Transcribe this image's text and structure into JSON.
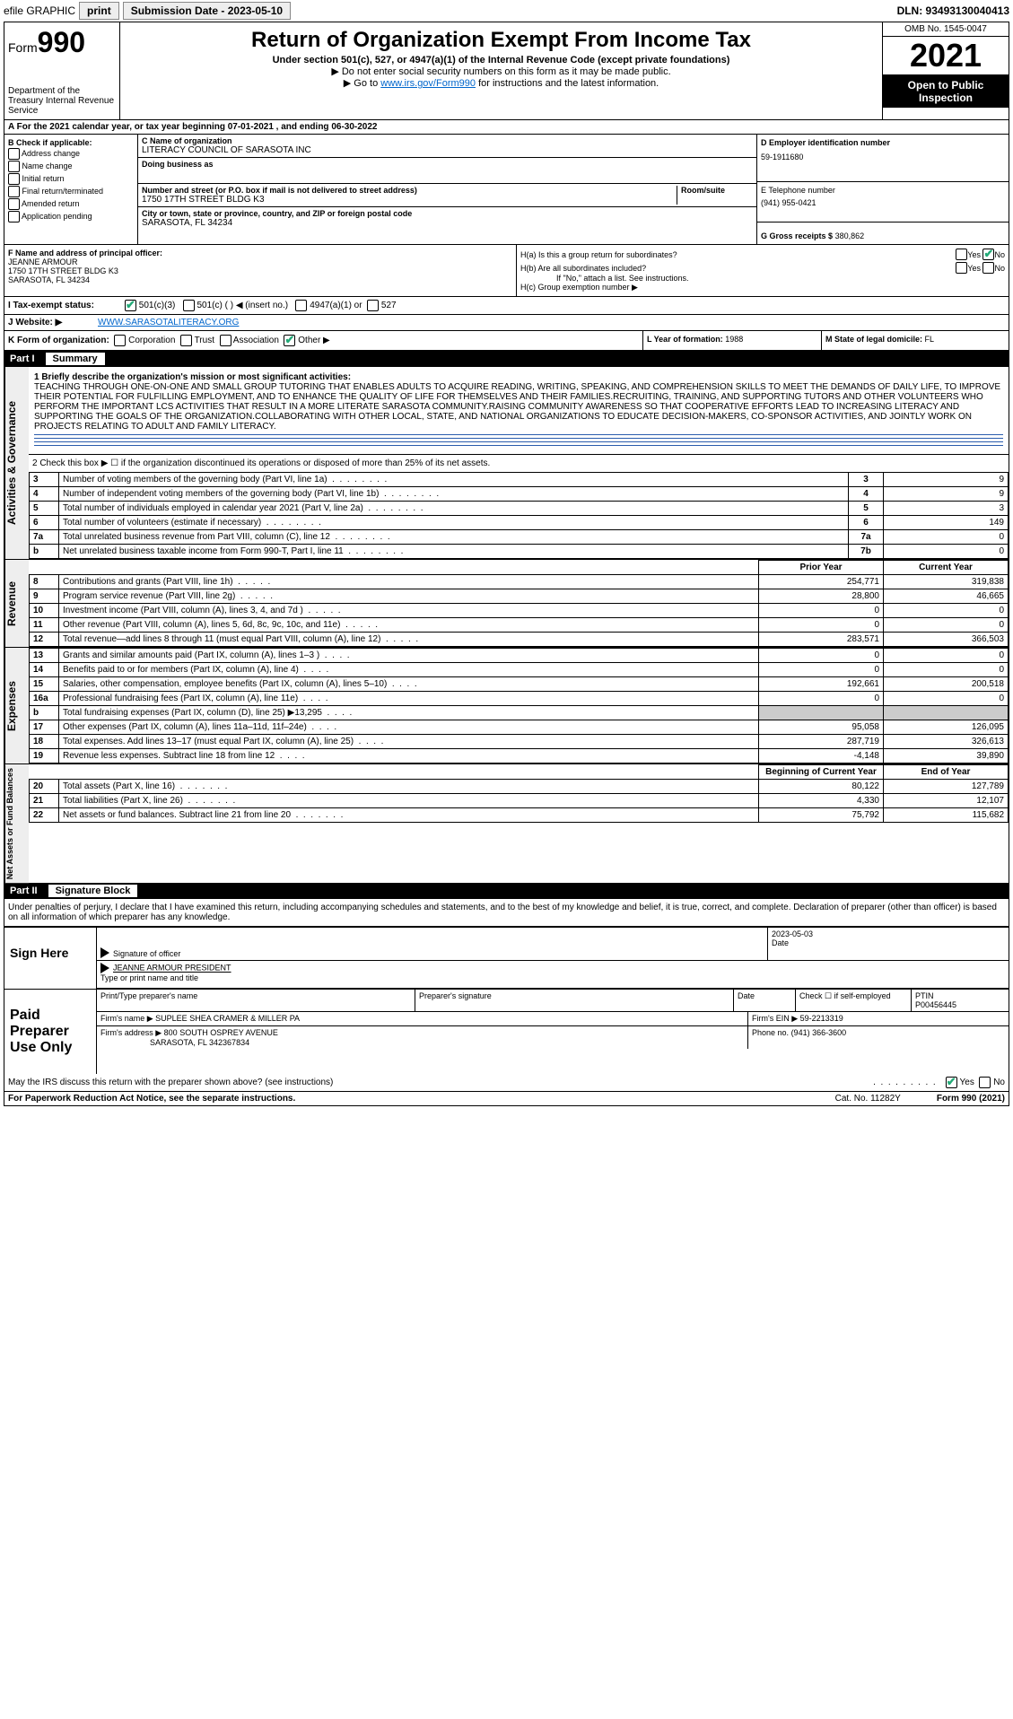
{
  "topbar": {
    "efile": "efile GRAPHIC",
    "print": "print",
    "subdate_label": "Submission Date - 2023-05-10",
    "dln": "DLN: 93493130040413"
  },
  "header": {
    "form_label": "Form",
    "form_num": "990",
    "dept": "Department of the Treasury\nInternal Revenue Service",
    "title": "Return of Organization Exempt From Income Tax",
    "sub1": "Under section 501(c), 527, or 4947(a)(1) of the Internal Revenue Code (except private foundations)",
    "sub2": "▶ Do not enter social security numbers on this form as it may be made public.",
    "sub3_pre": "▶ Go to ",
    "sub3_link": "www.irs.gov/Form990",
    "sub3_post": " for instructions and the latest information.",
    "omb": "OMB No. 1545-0047",
    "year": "2021",
    "open": "Open to Public Inspection"
  },
  "rowA": "A For the 2021 calendar year, or tax year beginning 07-01-2021   , and ending 06-30-2022",
  "sectionB": {
    "b_label": "B Check if applicable:",
    "checks": [
      "Address change",
      "Name change",
      "Initial return",
      "Final return/terminated",
      "Amended return",
      "Application pending"
    ],
    "c_label": "C Name of organization",
    "c_val": "LITERACY COUNCIL OF SARASOTA INC",
    "dba_label": "Doing business as",
    "dba_val": "",
    "addr_label": "Number and street (or P.O. box if mail is not delivered to street address)",
    "addr_val": "1750 17TH STREET BLDG K3",
    "room_label": "Room/suite",
    "city_label": "City or town, state or province, country, and ZIP or foreign postal code",
    "city_val": "SARASOTA, FL  34234",
    "d_label": "D Employer identification number",
    "d_val": "59-1911680",
    "e_label": "E Telephone number",
    "e_val": "(941) 955-0421",
    "g_label": "G Gross receipts $",
    "g_val": "380,862"
  },
  "sectionF": {
    "f_label": "F Name and address of principal officer:",
    "f_name": "JEANNE ARMOUR",
    "f_addr1": "1750 17TH STREET BLDG K3",
    "f_addr2": "SARASOTA, FL  34234",
    "ha_label": "H(a)  Is this a group return for subordinates?",
    "hb_label": "H(b)  Are all subordinates included?",
    "hb_note": "If \"No,\" attach a list. See instructions.",
    "hc_label": "H(c)  Group exemption number ▶",
    "yes": "Yes",
    "no": "No"
  },
  "rowI": {
    "label": "I   Tax-exempt status:",
    "opt1": "501(c)(3)",
    "opt2": "501(c) (  ) ◀ (insert no.)",
    "opt3": "4947(a)(1) or",
    "opt4": "527"
  },
  "rowJ": {
    "label": "J   Website: ▶",
    "val": "WWW.SARASOTALITERACY.ORG"
  },
  "sectionK": {
    "k_label": "K Form of organization:",
    "opts": [
      "Corporation",
      "Trust",
      "Association",
      "Other ▶"
    ],
    "l_label": "L Year of formation:",
    "l_val": "1988",
    "m_label": "M State of legal domicile:",
    "m_val": "FL"
  },
  "part1": {
    "header": "Part I",
    "title": "Summary",
    "line1_label": "1  Briefly describe the organization's mission or most significant activities:",
    "mission": "TEACHING THROUGH ONE-ON-ONE AND SMALL GROUP TUTORING THAT ENABLES ADULTS TO ACQUIRE READING, WRITING, SPEAKING, AND COMPREHENSION SKILLS TO MEET THE DEMANDS OF DAILY LIFE, TO IMPROVE THEIR POTENTIAL FOR FULFILLING EMPLOYMENT, AND TO ENHANCE THE QUALITY OF LIFE FOR THEMSELVES AND THEIR FAMILIES.RECRUITING, TRAINING, AND SUPPORTING TUTORS AND OTHER VOLUNTEERS WHO PERFORM THE IMPORTANT LCS ACTIVITIES THAT RESULT IN A MORE LITERATE SARASOTA COMMUNITY.RAISING COMMUNITY AWARENESS SO THAT COOPERATIVE EFFORTS LEAD TO INCREASING LITERACY AND SUPPORTING THE GOALS OF THE ORGANIZATION.COLLABORATING WITH OTHER LOCAL, STATE, AND NATIONAL ORGANIZATIONS TO EDUCATE DECISION-MAKERS, CO-SPONSOR ACTIVITIES, AND JOINTLY WORK ON PROJECTS RELATING TO ADULT AND FAMILY LITERACY.",
    "line2": "2   Check this box ▶ ☐ if the organization discontinued its operations or disposed of more than 25% of its net assets.",
    "governance_label": "Activities & Governance",
    "gov_rows": [
      {
        "n": "3",
        "desc": "Number of voting members of the governing body (Part VI, line 1a)",
        "num": "3",
        "val": "9"
      },
      {
        "n": "4",
        "desc": "Number of independent voting members of the governing body (Part VI, line 1b)",
        "num": "4",
        "val": "9"
      },
      {
        "n": "5",
        "desc": "Total number of individuals employed in calendar year 2021 (Part V, line 2a)",
        "num": "5",
        "val": "3"
      },
      {
        "n": "6",
        "desc": "Total number of volunteers (estimate if necessary)",
        "num": "6",
        "val": "149"
      },
      {
        "n": "7a",
        "desc": "Total unrelated business revenue from Part VIII, column (C), line 12",
        "num": "7a",
        "val": "0"
      },
      {
        "n": "b",
        "desc": "Net unrelated business taxable income from Form 990-T, Part I, line 11",
        "num": "7b",
        "val": "0"
      }
    ],
    "revenue_label": "Revenue",
    "col_prior": "Prior Year",
    "col_current": "Current Year",
    "rev_rows": [
      {
        "n": "8",
        "desc": "Contributions and grants (Part VIII, line 1h)",
        "p": "254,771",
        "c": "319,838"
      },
      {
        "n": "9",
        "desc": "Program service revenue (Part VIII, line 2g)",
        "p": "28,800",
        "c": "46,665"
      },
      {
        "n": "10",
        "desc": "Investment income (Part VIII, column (A), lines 3, 4, and 7d )",
        "p": "0",
        "c": "0"
      },
      {
        "n": "11",
        "desc": "Other revenue (Part VIII, column (A), lines 5, 6d, 8c, 9c, 10c, and 11e)",
        "p": "0",
        "c": "0"
      },
      {
        "n": "12",
        "desc": "Total revenue—add lines 8 through 11 (must equal Part VIII, column (A), line 12)",
        "p": "283,571",
        "c": "366,503"
      }
    ],
    "expenses_label": "Expenses",
    "exp_rows": [
      {
        "n": "13",
        "desc": "Grants and similar amounts paid (Part IX, column (A), lines 1–3 )",
        "p": "0",
        "c": "0"
      },
      {
        "n": "14",
        "desc": "Benefits paid to or for members (Part IX, column (A), line 4)",
        "p": "0",
        "c": "0"
      },
      {
        "n": "15",
        "desc": "Salaries, other compensation, employee benefits (Part IX, column (A), lines 5–10)",
        "p": "192,661",
        "c": "200,518"
      },
      {
        "n": "16a",
        "desc": "Professional fundraising fees (Part IX, column (A), line 11e)",
        "p": "0",
        "c": "0"
      },
      {
        "n": "b",
        "desc": "Total fundraising expenses (Part IX, column (D), line 25) ▶13,295",
        "p": "",
        "c": "",
        "shade": true
      },
      {
        "n": "17",
        "desc": "Other expenses (Part IX, column (A), lines 11a–11d, 11f–24e)",
        "p": "95,058",
        "c": "126,095"
      },
      {
        "n": "18",
        "desc": "Total expenses. Add lines 13–17 (must equal Part IX, column (A), line 25)",
        "p": "287,719",
        "c": "326,613"
      },
      {
        "n": "19",
        "desc": "Revenue less expenses. Subtract line 18 from line 12",
        "p": "-4,148",
        "c": "39,890"
      }
    ],
    "net_label": "Net Assets or Fund Balances",
    "col_begin": "Beginning of Current Year",
    "col_end": "End of Year",
    "net_rows": [
      {
        "n": "20",
        "desc": "Total assets (Part X, line 16)",
        "p": "80,122",
        "c": "127,789"
      },
      {
        "n": "21",
        "desc": "Total liabilities (Part X, line 26)",
        "p": "4,330",
        "c": "12,107"
      },
      {
        "n": "22",
        "desc": "Net assets or fund balances. Subtract line 21 from line 20",
        "p": "75,792",
        "c": "115,682"
      }
    ]
  },
  "part2": {
    "header": "Part II",
    "title": "Signature Block",
    "declaration": "Under penalties of perjury, I declare that I have examined this return, including accompanying schedules and statements, and to the best of my knowledge and belief, it is true, correct, and complete. Declaration of preparer (other than officer) is based on all information of which preparer has any knowledge.",
    "sign_here": "Sign Here",
    "sig_officer": "Signature of officer",
    "sig_date": "2023-05-03",
    "date_label": "Date",
    "officer_name": "JEANNE ARMOUR  PRESIDENT",
    "officer_sub": "Type or print name and title",
    "paid": "Paid Preparer Use Only",
    "prep_name_label": "Print/Type preparer's name",
    "prep_sig_label": "Preparer's signature",
    "prep_date_label": "Date",
    "check_self": "Check ☐ if self-employed",
    "ptin_label": "PTIN",
    "ptin_val": "P00456445",
    "firm_name_label": "Firm's name    ▶",
    "firm_name": "SUPLEE SHEA CRAMER & MILLER PA",
    "firm_ein_label": "Firm's EIN ▶",
    "firm_ein": "59-2213319",
    "firm_addr_label": "Firm's address ▶",
    "firm_addr1": "800 SOUTH OSPREY AVENUE",
    "firm_addr2": "SARASOTA, FL  342367834",
    "phone_label": "Phone no.",
    "phone": "(941) 366-3600",
    "may_irs": "May the IRS discuss this return with the preparer shown above? (see instructions)",
    "yes": "Yes",
    "no": "No"
  },
  "footer": {
    "left": "For Paperwork Reduction Act Notice, see the separate instructions.",
    "mid": "Cat. No. 11282Y",
    "right": "Form 990 (2021)"
  }
}
